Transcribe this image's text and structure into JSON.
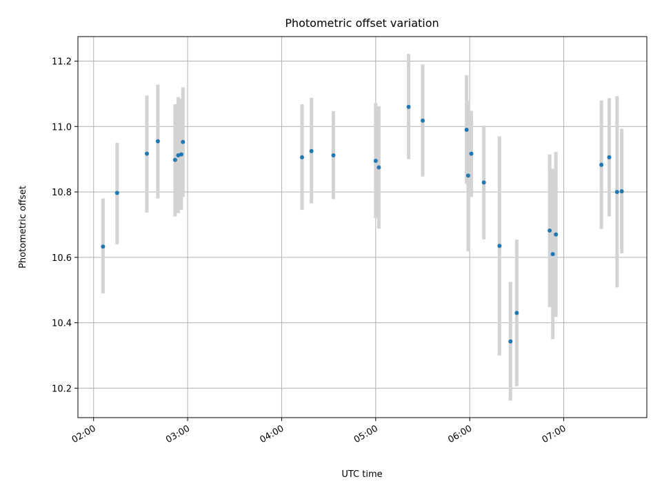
{
  "chart_data": {
    "type": "scatter",
    "title": "Photometric offset variation",
    "xlabel": "UTC time",
    "ylabel": "Photometric offset",
    "x_unit": "UTC time (HH:MM)",
    "xlim": [
      "01:50",
      "07:53"
    ],
    "ylim": [
      10.11,
      11.275
    ],
    "grid": true,
    "x_ticks": [
      "02:00",
      "03:00",
      "04:00",
      "05:00",
      "06:00",
      "07:00"
    ],
    "y_ticks": [
      10.2,
      10.4,
      10.6,
      10.8,
      11.0,
      11.2
    ],
    "y_tick_labels": [
      "10.2",
      "10.4",
      "10.6",
      "10.8",
      "11.0",
      "11.2"
    ],
    "colors": {
      "point": "#1f77b4",
      "errorbar": "#d3d3d3",
      "grid": "#b0b0b0"
    },
    "points": [
      {
        "t": "02:06",
        "y": 10.633,
        "lo": 10.49,
        "hi": 10.78
      },
      {
        "t": "02:15",
        "y": 10.797,
        "lo": 10.64,
        "hi": 10.95
      },
      {
        "t": "02:34",
        "y": 10.917,
        "lo": 10.737,
        "hi": 11.095
      },
      {
        "t": "02:41",
        "y": 10.955,
        "lo": 10.78,
        "hi": 11.128
      },
      {
        "t": "02:52",
        "y": 10.898,
        "lo": 10.725,
        "hi": 11.068
      },
      {
        "t": "02:54",
        "y": 10.912,
        "lo": 10.735,
        "hi": 11.09
      },
      {
        "t": "02:56",
        "y": 10.915,
        "lo": 10.745,
        "hi": 11.085
      },
      {
        "t": "02:57",
        "y": 10.953,
        "lo": 10.785,
        "hi": 11.12
      },
      {
        "t": "04:13",
        "y": 10.906,
        "lo": 10.745,
        "hi": 11.068
      },
      {
        "t": "04:19",
        "y": 10.925,
        "lo": 10.765,
        "hi": 11.088
      },
      {
        "t": "04:33",
        "y": 10.912,
        "lo": 10.778,
        "hi": 11.047
      },
      {
        "t": "05:00",
        "y": 10.895,
        "lo": 10.72,
        "hi": 11.072
      },
      {
        "t": "05:02",
        "y": 10.875,
        "lo": 10.688,
        "hi": 11.062
      },
      {
        "t": "05:21",
        "y": 11.06,
        "lo": 10.9,
        "hi": 11.222
      },
      {
        "t": "05:30",
        "y": 11.018,
        "lo": 10.847,
        "hi": 11.19
      },
      {
        "t": "05:58",
        "y": 10.99,
        "lo": 10.825,
        "hi": 11.157
      },
      {
        "t": "05:59",
        "y": 10.85,
        "lo": 10.618,
        "hi": 11.078
      },
      {
        "t": "06:01",
        "y": 10.917,
        "lo": 10.785,
        "hi": 11.048
      },
      {
        "t": "06:09",
        "y": 10.829,
        "lo": 10.655,
        "hi": 11.003
      },
      {
        "t": "06:19",
        "y": 10.635,
        "lo": 10.3,
        "hi": 10.97
      },
      {
        "t": "06:26",
        "y": 10.343,
        "lo": 10.162,
        "hi": 10.525
      },
      {
        "t": "06:30",
        "y": 10.43,
        "lo": 10.206,
        "hi": 10.654
      },
      {
        "t": "06:51",
        "y": 10.682,
        "lo": 10.448,
        "hi": 10.915
      },
      {
        "t": "06:53",
        "y": 10.61,
        "lo": 10.35,
        "hi": 10.871
      },
      {
        "t": "06:55",
        "y": 10.67,
        "lo": 10.418,
        "hi": 10.922
      },
      {
        "t": "07:24",
        "y": 10.883,
        "lo": 10.687,
        "hi": 11.08
      },
      {
        "t": "07:29",
        "y": 10.906,
        "lo": 10.725,
        "hi": 11.087
      },
      {
        "t": "07:34",
        "y": 10.8,
        "lo": 10.508,
        "hi": 11.093
      },
      {
        "t": "07:37",
        "y": 10.802,
        "lo": 10.612,
        "hi": 10.993
      }
    ]
  }
}
